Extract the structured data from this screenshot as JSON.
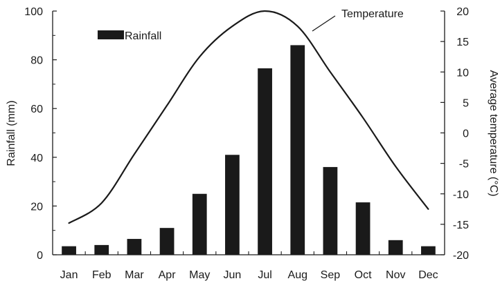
{
  "chart_data": {
    "type": "bar",
    "categories": [
      "Jan",
      "Feb",
      "Mar",
      "Apr",
      "May",
      "Jun",
      "Jul",
      "Aug",
      "Sep",
      "Oct",
      "Nov",
      "Dec"
    ],
    "series": [
      {
        "name": "Rainfall",
        "type": "bar",
        "axis": "left",
        "values": [
          3.5,
          4,
          6.5,
          11,
          25,
          41,
          76.5,
          86,
          36,
          21.5,
          6,
          3.5
        ],
        "color": "#1a1a1a"
      },
      {
        "name": "Temperature",
        "type": "line",
        "axis": "right",
        "values": [
          -14.8,
          -11.5,
          -3.5,
          4.5,
          12.5,
          17.5,
          20,
          17.5,
          10,
          2.5,
          -5.5,
          -12.5
        ],
        "color": "#1a1a1a"
      }
    ],
    "ylabel": "Rainfall (mm)",
    "y2label": "Average temperature (°C)",
    "ylim": [
      0,
      100
    ],
    "y2lim": [
      -20,
      20
    ],
    "yticks": [
      0,
      20,
      40,
      60,
      80,
      100
    ],
    "y2ticks": [
      -20,
      -15,
      -10,
      -5,
      0,
      5,
      10,
      15,
      20
    ],
    "grid": false,
    "legend": {
      "position": "top-left",
      "entries": [
        "Rainfall"
      ]
    },
    "annotations": [
      {
        "text": "Temperature",
        "target_series": "Temperature"
      }
    ]
  }
}
